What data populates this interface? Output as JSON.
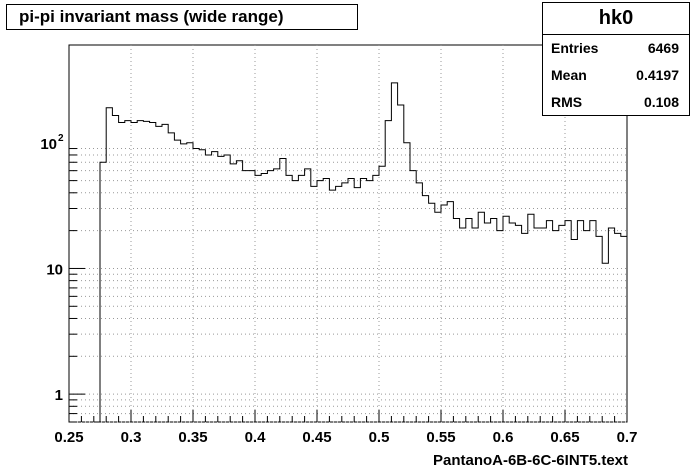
{
  "header": {
    "title": "pi-pi invariant mass (wide range)"
  },
  "stats": {
    "name": "hk0",
    "entries_label": "Entries",
    "entries_value": "6469",
    "mean_label": "Mean",
    "mean_value": "0.4197",
    "rms_label": "RMS",
    "rms_value": "0.108"
  },
  "chart_data": {
    "type": "bar",
    "title": "pi-pi invariant mass (wide range)",
    "xlabel": "PantanoA-6B-6C-6INT5.text",
    "ylabel": "",
    "xlim": [
      0.25,
      0.7
    ],
    "ylim": [
      0.6,
      600
    ],
    "yscale": "log",
    "grid": true,
    "bin_width": 0.005,
    "x_ticks": [
      "0.25",
      "0.3",
      "0.35",
      "0.4",
      "0.45",
      "0.5",
      "0.55",
      "0.6",
      "0.65",
      "0.7"
    ],
    "y_ticks": [
      {
        "value": 1,
        "label": "1"
      },
      {
        "value": 10,
        "label": "10"
      },
      {
        "value": 100,
        "label": "10",
        "exp": "2"
      }
    ],
    "bins_x_low": [
      0.27,
      0.275,
      0.28,
      0.285,
      0.29,
      0.295,
      0.3,
      0.305,
      0.31,
      0.315,
      0.32,
      0.325,
      0.33,
      0.335,
      0.34,
      0.345,
      0.35,
      0.355,
      0.36,
      0.365,
      0.37,
      0.375,
      0.38,
      0.385,
      0.39,
      0.395,
      0.4,
      0.405,
      0.41,
      0.415,
      0.42,
      0.425,
      0.43,
      0.435,
      0.44,
      0.445,
      0.45,
      0.455,
      0.46,
      0.465,
      0.47,
      0.475,
      0.48,
      0.485,
      0.49,
      0.495,
      0.5,
      0.505,
      0.51,
      0.515,
      0.52,
      0.525,
      0.53,
      0.535,
      0.54,
      0.545,
      0.55,
      0.555,
      0.56,
      0.565,
      0.57,
      0.575,
      0.58,
      0.585,
      0.59,
      0.595,
      0.6,
      0.605,
      0.61,
      0.615,
      0.62,
      0.625,
      0.63,
      0.635,
      0.64,
      0.645,
      0.65,
      0.655,
      0.66,
      0.665,
      0.67,
      0.675,
      0.68,
      0.685,
      0.69,
      0.695
    ],
    "values": [
      0,
      70,
      190,
      165,
      145,
      150,
      145,
      150,
      148,
      145,
      135,
      140,
      120,
      105,
      98,
      100,
      90,
      88,
      80,
      85,
      78,
      80,
      68,
      72,
      60,
      60,
      55,
      57,
      60,
      62,
      75,
      55,
      50,
      55,
      62,
      45,
      50,
      52,
      42,
      45,
      48,
      52,
      44,
      52,
      50,
      55,
      65,
      150,
      300,
      200,
      100,
      60,
      48,
      38,
      33,
      28,
      32,
      34,
      25,
      21,
      25,
      21,
      28,
      23,
      25,
      20,
      26,
      23,
      22,
      19,
      27,
      21,
      21,
      24,
      20,
      22,
      24,
      17,
      24,
      20,
      24,
      18,
      11,
      21,
      19,
      18
    ]
  }
}
